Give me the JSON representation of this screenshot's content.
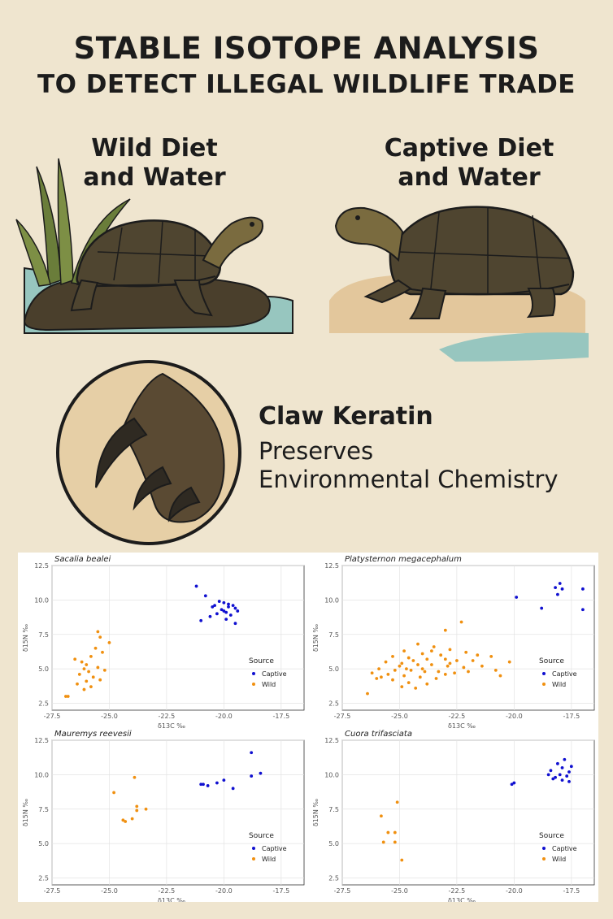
{
  "header": {
    "title_line1": "STABLE ISOTOPE ANALYSIS",
    "title_line2": "TO DETECT ILLEGAL WILDLIFE TRADE"
  },
  "wild": {
    "line1": "Wild Diet",
    "line2": "and Water"
  },
  "captive": {
    "line1": "Captive Diet",
    "line2": "and Water"
  },
  "claw": {
    "title": "Claw Keratin",
    "line1": "Preserves",
    "line2": "Environmental Chemistry"
  },
  "colors": {
    "captive": "#1010d0",
    "wild": "#f09010",
    "background": "#efe5cf"
  },
  "chart_data": [
    {
      "type": "scatter",
      "title": "Sacalia bealei",
      "xlabel": "δ13C ‰",
      "ylabel": "δ15N ‰",
      "xlim": [
        -27.5,
        -16.5
      ],
      "ylim": [
        2,
        12.5
      ],
      "xticks": [
        -27.5,
        -25.0,
        -22.5,
        -20.0,
        -17.5
      ],
      "yticks": [
        2.5,
        5.0,
        7.5,
        10.0,
        12.5
      ],
      "grid": true,
      "legend": {
        "title": "Source",
        "position": "bottom-right",
        "entries": [
          "Captive",
          "Wild"
        ]
      },
      "series": [
        {
          "name": "Captive",
          "color": "#1010d0",
          "points": [
            [
              -21.2,
              11.0
            ],
            [
              -20.8,
              10.3
            ],
            [
              -20.5,
              9.5
            ],
            [
              -20.2,
              9.9
            ],
            [
              -20.0,
              9.8
            ],
            [
              -19.8,
              9.7
            ],
            [
              -19.6,
              9.6
            ],
            [
              -19.5,
              9.4
            ],
            [
              -20.1,
              9.3
            ],
            [
              -19.9,
              9.1
            ],
            [
              -20.3,
              9.0
            ],
            [
              -19.7,
              8.9
            ],
            [
              -19.4,
              9.2
            ],
            [
              -20.6,
              8.8
            ],
            [
              -19.9,
              8.6
            ],
            [
              -19.5,
              8.3
            ],
            [
              -21.0,
              8.5
            ],
            [
              -20.4,
              9.6
            ],
            [
              -19.8,
              9.5
            ],
            [
              -20.0,
              9.2
            ]
          ]
        },
        {
          "name": "Wild",
          "color": "#f09010",
          "points": [
            [
              -25.5,
              7.7
            ],
            [
              -25.4,
              7.3
            ],
            [
              -25.0,
              6.9
            ],
            [
              -25.6,
              6.5
            ],
            [
              -25.3,
              6.2
            ],
            [
              -25.8,
              5.9
            ],
            [
              -26.2,
              5.5
            ],
            [
              -26.0,
              5.3
            ],
            [
              -26.5,
              5.7
            ],
            [
              -26.1,
              5.0
            ],
            [
              -25.9,
              4.8
            ],
            [
              -26.3,
              4.6
            ],
            [
              -25.7,
              4.4
            ],
            [
              -26.0,
              4.1
            ],
            [
              -26.4,
              3.9
            ],
            [
              -25.8,
              3.7
            ],
            [
              -26.1,
              3.5
            ],
            [
              -25.5,
              5.1
            ],
            [
              -25.2,
              4.9
            ],
            [
              -26.8,
              3.0
            ],
            [
              -26.9,
              3.0
            ],
            [
              -25.4,
              4.2
            ]
          ]
        }
      ]
    },
    {
      "type": "scatter",
      "title": "Platysternon megacephalum",
      "xlabel": "δ13C ‰",
      "ylabel": "δ15N ‰",
      "xlim": [
        -27.5,
        -16.5
      ],
      "ylim": [
        2,
        12.5
      ],
      "xticks": [
        -27.5,
        -25.0,
        -22.5,
        -20.0,
        -17.5
      ],
      "yticks": [
        2.5,
        5.0,
        7.5,
        10.0,
        12.5
      ],
      "grid": true,
      "legend": {
        "title": "Source",
        "position": "bottom-right",
        "entries": [
          "Captive",
          "Wild"
        ]
      },
      "series": [
        {
          "name": "Captive",
          "color": "#1010d0",
          "points": [
            [
              -18.0,
              11.2
            ],
            [
              -17.9,
              10.8
            ],
            [
              -18.2,
              10.9
            ],
            [
              -17.0,
              10.8
            ],
            [
              -18.1,
              10.4
            ],
            [
              -19.9,
              10.2
            ],
            [
              -18.8,
              9.4
            ],
            [
              -17.0,
              9.3
            ]
          ]
        },
        {
          "name": "Wild",
          "color": "#f09010",
          "points": [
            [
              -22.3,
              8.4
            ],
            [
              -23.0,
              7.8
            ],
            [
              -24.2,
              6.8
            ],
            [
              -23.5,
              6.6
            ],
            [
              -22.8,
              6.4
            ],
            [
              -24.8,
              6.3
            ],
            [
              -24.0,
              6.1
            ],
            [
              -23.2,
              6.0
            ],
            [
              -22.1,
              6.2
            ],
            [
              -21.6,
              6.0
            ],
            [
              -25.3,
              5.9
            ],
            [
              -24.6,
              5.8
            ],
            [
              -23.8,
              5.7
            ],
            [
              -23.0,
              5.7
            ],
            [
              -22.5,
              5.6
            ],
            [
              -21.8,
              5.6
            ],
            [
              -21.0,
              5.9
            ],
            [
              -25.6,
              5.5
            ],
            [
              -24.9,
              5.4
            ],
            [
              -24.2,
              5.3
            ],
            [
              -23.6,
              5.3
            ],
            [
              -22.9,
              5.2
            ],
            [
              -22.2,
              5.1
            ],
            [
              -21.4,
              5.2
            ],
            [
              -20.2,
              5.5
            ],
            [
              -25.9,
              5.0
            ],
            [
              -25.2,
              4.9
            ],
            [
              -24.5,
              4.9
            ],
            [
              -23.9,
              4.8
            ],
            [
              -23.3,
              4.8
            ],
            [
              -22.6,
              4.7
            ],
            [
              -26.2,
              4.7
            ],
            [
              -25.5,
              4.6
            ],
            [
              -24.8,
              4.5
            ],
            [
              -24.1,
              4.4
            ],
            [
              -23.4,
              4.3
            ],
            [
              -26.0,
              4.3
            ],
            [
              -25.3,
              4.2
            ],
            [
              -24.6,
              4.0
            ],
            [
              -23.8,
              3.9
            ],
            [
              -24.9,
              3.7
            ],
            [
              -24.3,
              3.6
            ],
            [
              -26.4,
              3.2
            ],
            [
              -20.8,
              4.9
            ],
            [
              -20.6,
              4.5
            ],
            [
              -24.0,
              5.0
            ],
            [
              -22.0,
              4.8
            ],
            [
              -23.0,
              4.6
            ],
            [
              -25.0,
              5.2
            ],
            [
              -24.4,
              5.6
            ],
            [
              -22.8,
              5.4
            ],
            [
              -23.6,
              6.3
            ],
            [
              -24.7,
              5.0
            ],
            [
              -25.8,
              4.4
            ]
          ]
        }
      ]
    },
    {
      "type": "scatter",
      "title": "Mauremys reevesii",
      "xlabel": "δ13C ‰",
      "ylabel": "δ15N ‰",
      "xlim": [
        -27.5,
        -16.5
      ],
      "ylim": [
        2,
        12.5
      ],
      "xticks": [
        -27.5,
        -25.0,
        -22.5,
        -20.0,
        -17.5
      ],
      "yticks": [
        2.5,
        5.0,
        7.5,
        10.0,
        12.5
      ],
      "grid": true,
      "legend": {
        "title": "Source",
        "position": "bottom-right",
        "entries": [
          "Captive",
          "Wild"
        ]
      },
      "series": [
        {
          "name": "Captive",
          "color": "#1010d0",
          "points": [
            [
              -18.8,
              11.6
            ],
            [
              -18.4,
              10.1
            ],
            [
              -18.8,
              9.9
            ],
            [
              -20.0,
              9.6
            ],
            [
              -20.3,
              9.4
            ],
            [
              -20.9,
              9.3
            ],
            [
              -20.7,
              9.2
            ],
            [
              -21.0,
              9.3
            ],
            [
              -19.6,
              9.0
            ]
          ]
        },
        {
          "name": "Wild",
          "color": "#f09010",
          "points": [
            [
              -23.9,
              9.8
            ],
            [
              -24.8,
              8.7
            ],
            [
              -23.8,
              7.7
            ],
            [
              -23.8,
              7.4
            ],
            [
              -23.4,
              7.5
            ],
            [
              -24.0,
              6.8
            ],
            [
              -24.4,
              6.7
            ],
            [
              -24.3,
              6.6
            ]
          ]
        }
      ]
    },
    {
      "type": "scatter",
      "title": "Cuora trifasciata",
      "xlabel": "δ13C ‰",
      "ylabel": "δ15N ‰",
      "xlim": [
        -27.5,
        -16.5
      ],
      "ylim": [
        2,
        12.5
      ],
      "xticks": [
        -27.5,
        -25.0,
        -22.5,
        -20.0,
        -17.5
      ],
      "yticks": [
        2.5,
        5.0,
        7.5,
        10.0,
        12.5
      ],
      "grid": true,
      "legend": {
        "title": "Source",
        "position": "bottom-right",
        "entries": [
          "Captive",
          "Wild"
        ]
      },
      "series": [
        {
          "name": "Captive",
          "color": "#1010d0",
          "points": [
            [
              -17.8,
              11.1
            ],
            [
              -18.1,
              10.8
            ],
            [
              -17.5,
              10.6
            ],
            [
              -17.9,
              10.5
            ],
            [
              -18.4,
              10.3
            ],
            [
              -17.6,
              10.2
            ],
            [
              -18.0,
              10.0
            ],
            [
              -18.5,
              10.0
            ],
            [
              -17.7,
              9.9
            ],
            [
              -18.2,
              9.8
            ],
            [
              -17.9,
              9.6
            ],
            [
              -18.3,
              9.7
            ],
            [
              -17.6,
              9.5
            ],
            [
              -20.0,
              9.4
            ],
            [
              -20.1,
              9.3
            ]
          ]
        },
        {
          "name": "Wild",
          "color": "#f09010",
          "points": [
            [
              -25.1,
              8.0
            ],
            [
              -25.8,
              7.0
            ],
            [
              -25.5,
              5.8
            ],
            [
              -25.2,
              5.8
            ],
            [
              -25.7,
              5.1
            ],
            [
              -25.2,
              5.1
            ],
            [
              -24.9,
              3.8
            ]
          ]
        }
      ]
    }
  ]
}
